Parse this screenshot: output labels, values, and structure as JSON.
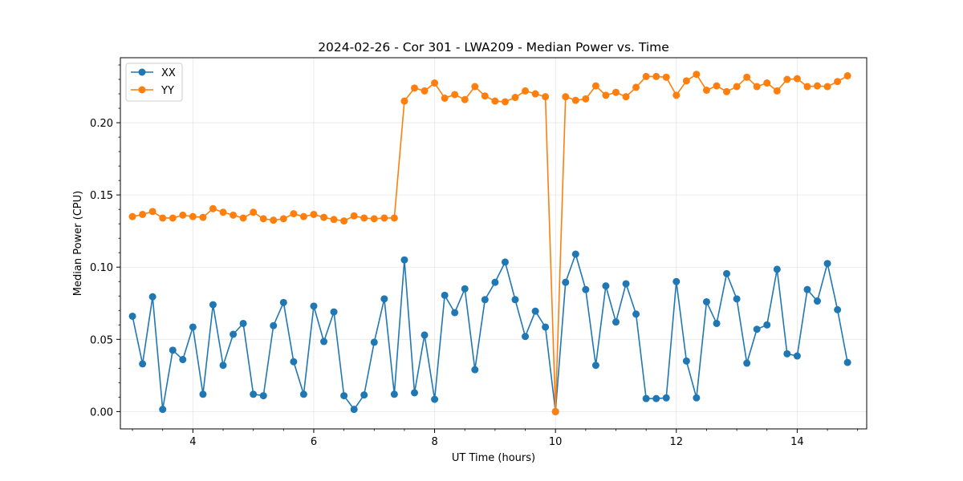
{
  "chart_data": {
    "type": "line",
    "title": "2024-02-26 - Cor 301 - LWA209 - Median Power vs. Time",
    "xlabel": "UT Time (hours)",
    "ylabel": "Median Power (CPU)",
    "xlim": [
      2.8,
      15.15
    ],
    "ylim": [
      -0.012,
      0.245
    ],
    "xticks": [
      4,
      6,
      8,
      10,
      12,
      14
    ],
    "xtick_labels": [
      "4",
      "6",
      "8",
      "10",
      "12",
      "14"
    ],
    "yticks": [
      0.0,
      0.05,
      0.1,
      0.15,
      0.2
    ],
    "ytick_labels": [
      "0.00",
      "0.05",
      "0.10",
      "0.15",
      "0.20"
    ],
    "grid": true,
    "legend_position": "top-left",
    "x": [
      3.0,
      3.167,
      3.333,
      3.5,
      3.667,
      3.833,
      4.0,
      4.167,
      4.333,
      4.5,
      4.667,
      4.833,
      5.0,
      5.167,
      5.333,
      5.5,
      5.667,
      5.833,
      6.0,
      6.167,
      6.333,
      6.5,
      6.667,
      6.833,
      7.0,
      7.167,
      7.333,
      7.5,
      7.667,
      7.833,
      8.0,
      8.167,
      8.333,
      8.5,
      8.667,
      8.833,
      9.0,
      9.167,
      9.333,
      9.5,
      9.667,
      9.833,
      10.0,
      10.167,
      10.333,
      10.5,
      10.667,
      10.833,
      11.0,
      11.167,
      11.333,
      11.5,
      11.667,
      11.833,
      12.0,
      12.167,
      12.333,
      12.5,
      12.667,
      12.833,
      13.0,
      13.167,
      13.333,
      13.5,
      13.667,
      13.833,
      14.0,
      14.167,
      14.333,
      14.5,
      14.667,
      14.833
    ],
    "series": [
      {
        "name": "XX",
        "color": "#1f77b4",
        "values": [
          0.066,
          0.033,
          0.0795,
          0.0015,
          0.0425,
          0.036,
          0.0585,
          0.012,
          0.074,
          0.032,
          0.0535,
          0.061,
          0.012,
          0.011,
          0.0595,
          0.0755,
          0.0345,
          0.012,
          0.073,
          0.0485,
          0.069,
          0.011,
          0.0015,
          0.0115,
          0.048,
          0.078,
          0.012,
          0.105,
          0.013,
          0.053,
          0.0085,
          0.0805,
          0.0685,
          0.085,
          0.029,
          0.0775,
          0.0895,
          0.1035,
          0.0775,
          0.052,
          0.0695,
          0.0585,
          0.0,
          0.0895,
          0.109,
          0.0845,
          0.032,
          0.087,
          0.062,
          0.0885,
          0.0675,
          0.009,
          0.009,
          0.0095,
          0.09,
          0.035,
          0.0095,
          0.076,
          0.061,
          0.0955,
          0.078,
          0.0335,
          0.057,
          0.06,
          0.0985,
          0.04,
          0.0385,
          0.0845,
          0.0765,
          0.1025,
          0.0705,
          0.034
        ]
      },
      {
        "name": "YY",
        "color": "#ff7f0e",
        "values": [
          0.135,
          0.1365,
          0.1385,
          0.134,
          0.134,
          0.136,
          0.135,
          0.1345,
          0.1405,
          0.138,
          0.136,
          0.134,
          0.138,
          0.1335,
          0.1325,
          0.1335,
          0.137,
          0.135,
          0.1365,
          0.1345,
          0.133,
          0.132,
          0.1355,
          0.134,
          0.1335,
          0.134,
          0.134,
          0.215,
          0.224,
          0.222,
          0.2275,
          0.217,
          0.2195,
          0.216,
          0.225,
          0.2185,
          0.215,
          0.2145,
          0.2175,
          0.222,
          0.22,
          0.218,
          0.0,
          0.218,
          0.2155,
          0.2165,
          0.2255,
          0.219,
          0.221,
          0.218,
          0.2245,
          0.232,
          0.232,
          0.2315,
          0.219,
          0.229,
          0.2335,
          0.2225,
          0.2255,
          0.2215,
          0.225,
          0.2315,
          0.225,
          0.2275,
          0.222,
          0.23,
          0.2305,
          0.225,
          0.2255,
          0.225,
          0.2285,
          0.2325
        ]
      }
    ]
  }
}
